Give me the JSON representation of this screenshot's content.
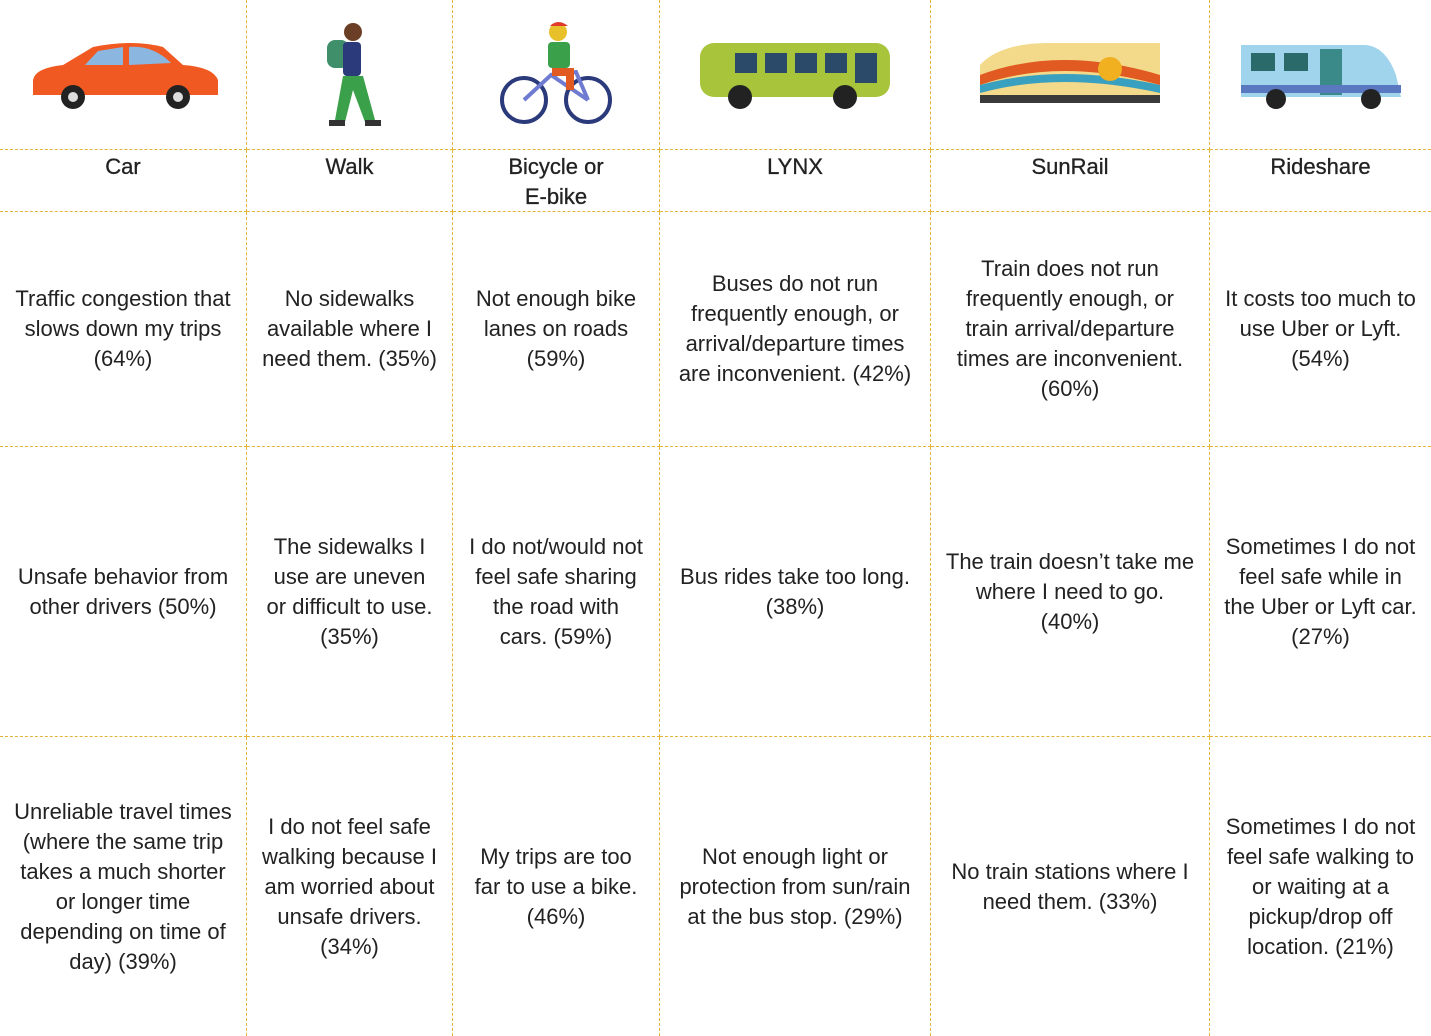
{
  "table": {
    "columns": [
      "Car",
      "Walk",
      "Bicycle or E-bike",
      "LYNX",
      "SunRail",
      "Rideshare"
    ],
    "rows": [
      [
        "Traffic congestion that slows down my trips (64%)",
        "No sidewalks available where I need them. (35%)",
        "Not enough bike lanes on roads (59%)",
        "Buses do not run frequently enough, or arrival/departure times are inconvenient. (42%)",
        "Train does not run frequently enough, or train arrival/departure times are inconvenient. (60%)",
        "It costs too much to use Uber or Lyft. (54%)"
      ],
      [
        "Unsafe behavior from other drivers (50%)",
        "The sidewalks I use are uneven or difficult to use. (35%)",
        "I do not/would not feel safe sharing the road with cars. (59%)",
        "Bus rides take too long. (38%)",
        "The train doesn’t take me where I need to go. (40%)",
        "Sometimes I do not feel safe while in the Uber or Lyft car. (27%)"
      ],
      [
        "Unreliable travel times (where the same trip takes a much shorter or longer time depending on time of day) (39%)",
        "I do not feel safe walking because I am worried about unsafe drivers. (34%)",
        "My trips are too far to use a bike. (46%)",
        "Not enough light or protection from sun/rain at the bus stop. (29%)",
        "No train stations where I need them. (33%)",
        "Sometimes I do not feel safe walking to or waiting at a pickup/drop off location. (21%)"
      ]
    ]
  }
}
